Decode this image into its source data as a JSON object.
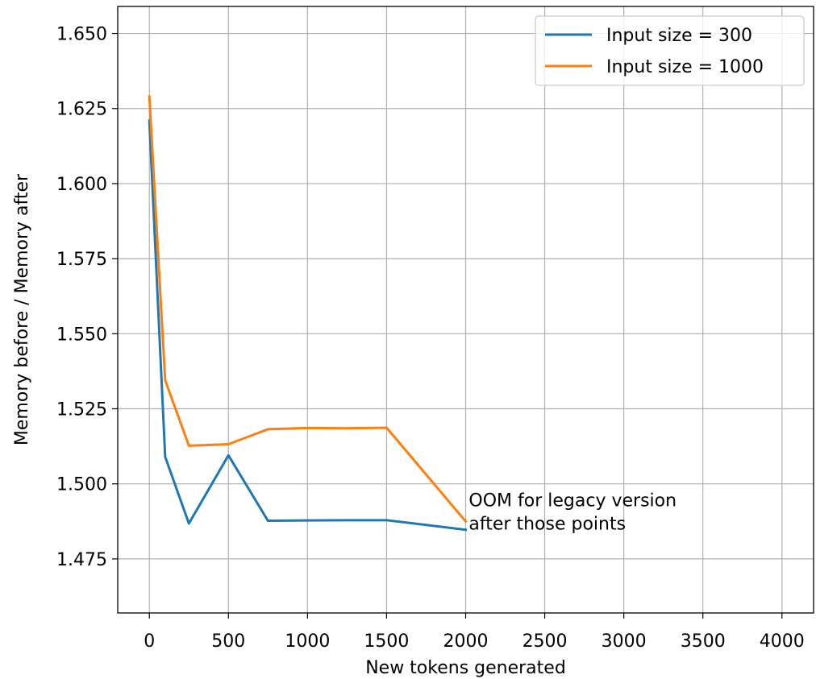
{
  "chart_data": {
    "type": "line",
    "xlabel": "New tokens generated",
    "ylabel": "Memory before / Memory after",
    "xlim": [
      -200,
      4200
    ],
    "ylim": [
      1.457,
      1.659
    ],
    "xticks": [
      0,
      500,
      1000,
      1500,
      2000,
      2500,
      3000,
      3500,
      4000
    ],
    "yticks": [
      1.475,
      1.5,
      1.525,
      1.55,
      1.575,
      1.6,
      1.625,
      1.65
    ],
    "xtick_labels": [
      "0",
      "500",
      "1000",
      "1500",
      "2000",
      "2500",
      "3000",
      "3500",
      "4000"
    ],
    "ytick_labels": [
      "1.475",
      "1.500",
      "1.525",
      "1.550",
      "1.575",
      "1.600",
      "1.625",
      "1.650"
    ],
    "grid": true,
    "legend_position": "top-right",
    "series": [
      {
        "name": "Input size = 300",
        "color": "#1f77b4",
        "x": [
          0,
          100,
          250,
          500,
          750,
          1000,
          1250,
          1500,
          2000
        ],
        "y": [
          1.621,
          1.509,
          1.4868,
          1.5095,
          1.4877,
          1.4878,
          1.4879,
          1.4879,
          1.4847
        ]
      },
      {
        "name": "Input size = 1000",
        "color": "#ff7f0e",
        "x": [
          0,
          100,
          250,
          500,
          750,
          1000,
          1250,
          1500,
          2000
        ],
        "y": [
          1.629,
          1.5345,
          1.5127,
          1.5132,
          1.5182,
          1.5186,
          1.5185,
          1.5187,
          1.4875
        ]
      }
    ],
    "annotations": [
      {
        "text": "OOM for legacy version",
        "x": 2020,
        "y": 1.4925
      },
      {
        "text": "after those points",
        "x": 2020,
        "y": 1.4847
      }
    ]
  }
}
